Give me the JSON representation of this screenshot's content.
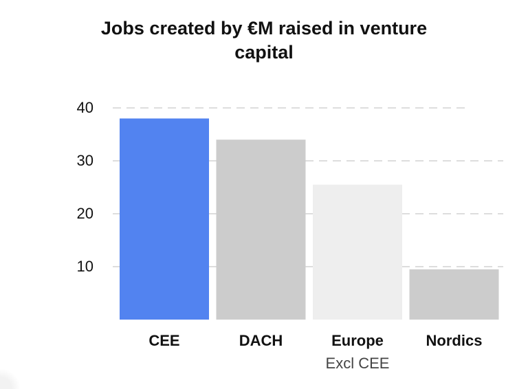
{
  "chart_data": {
    "type": "bar",
    "title_lines": [
      "Jobs created by €M raised in venture",
      "capital"
    ],
    "categories": [
      "CEE",
      "DACH",
      "Europe",
      "Nordics"
    ],
    "category_sublabels": [
      "",
      "",
      "Excl CEE",
      ""
    ],
    "values": [
      38,
      34,
      25.5,
      9.5
    ],
    "bar_colors": [
      "#5283f0",
      "#cccccc",
      "#eeeeee",
      "#cccccc"
    ],
    "yticks": [
      10,
      20,
      30,
      40
    ],
    "ylim": [
      0,
      40
    ],
    "grid": true,
    "grid_style": "dashed",
    "grid_color": "#dddddd",
    "xlabel": "",
    "ylabel": ""
  }
}
